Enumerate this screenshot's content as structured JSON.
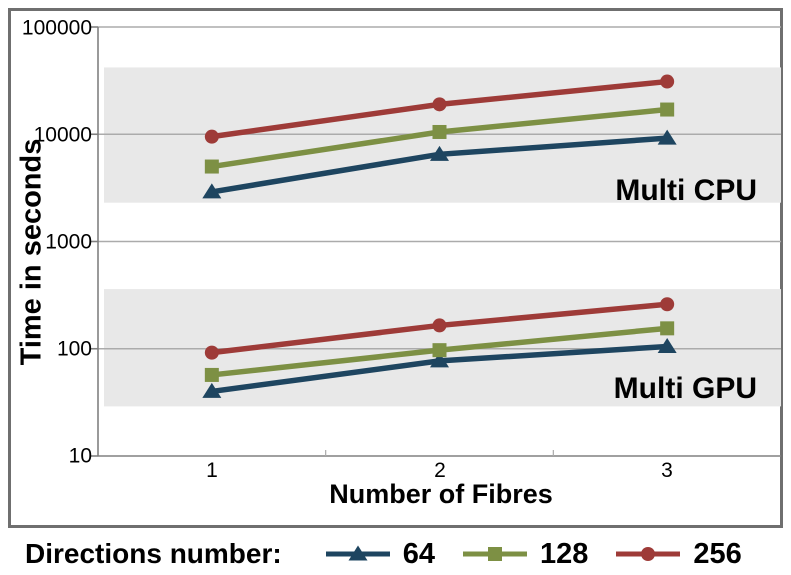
{
  "figure": {
    "y_axis_title": "Time in seconds",
    "x_axis_title": "Number of Fibres",
    "y_ticks": [
      "100000",
      "10000",
      "1000",
      "100",
      "10"
    ],
    "x_ticks": [
      "1",
      "2",
      "3"
    ]
  },
  "legend": {
    "title": "Directions number:",
    "entries": [
      {
        "label": "64",
        "marker": "triangle",
        "color": "#1E4560"
      },
      {
        "label": "128",
        "marker": "square",
        "color": "#7D9044"
      },
      {
        "label": "256",
        "marker": "circle",
        "color": "#9E3B38"
      }
    ]
  },
  "colors": {
    "band": "#e8e8e8",
    "gridline": "#ababab",
    "axis": "#808080",
    "border": "#6f6f6f",
    "text": "#000000"
  },
  "chart_data": {
    "type": "line",
    "title": "",
    "xlabel": "Number of Fibres",
    "ylabel": "Time in seconds",
    "x": [
      1,
      2,
      3
    ],
    "yscale": "log",
    "ylim": [
      10,
      100000
    ],
    "gridlines": [
      100000,
      10000,
      1000,
      100,
      10
    ],
    "legend_position": "bottom",
    "groups": [
      {
        "name": "Multi CPU",
        "band_range": [
          2300,
          42000
        ],
        "series": [
          {
            "name": "64",
            "marker": "triangle",
            "color": "#1E4560",
            "values": [
              2900,
              6500,
              9200
            ]
          },
          {
            "name": "128",
            "marker": "square",
            "color": "#7D9044",
            "values": [
              5000,
              10500,
              17000
            ]
          },
          {
            "name": "256",
            "marker": "circle",
            "color": "#9E3B38",
            "values": [
              9500,
              19000,
              31000
            ]
          }
        ]
      },
      {
        "name": "Multi GPU",
        "band_range": [
          29,
          360
        ],
        "series": [
          {
            "name": "64",
            "marker": "triangle",
            "color": "#1E4560",
            "values": [
              40,
              77,
              105
            ]
          },
          {
            "name": "128",
            "marker": "square",
            "color": "#7D9044",
            "values": [
              57,
              97,
              155
            ]
          },
          {
            "name": "256",
            "marker": "circle",
            "color": "#9E3B38",
            "values": [
              92,
              165,
              260
            ]
          }
        ]
      }
    ]
  }
}
